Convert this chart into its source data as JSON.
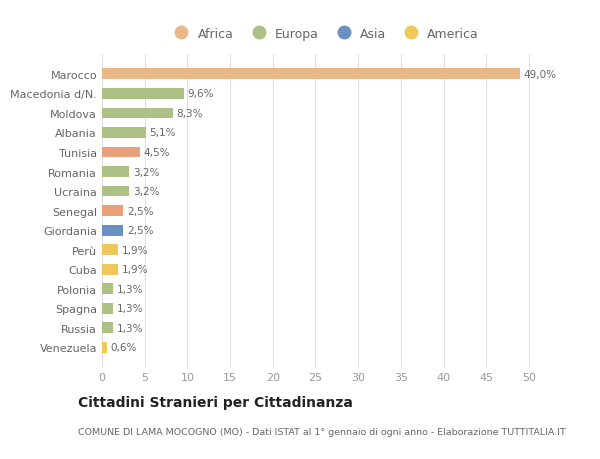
{
  "categories": [
    "Venezuela",
    "Russia",
    "Spagna",
    "Polonia",
    "Cuba",
    "Perù",
    "Giordania",
    "Senegal",
    "Ucraina",
    "Romania",
    "Tunisia",
    "Albania",
    "Moldova",
    "Macedonia d/N.",
    "Marocco"
  ],
  "values": [
    0.6,
    1.3,
    1.3,
    1.3,
    1.9,
    1.9,
    2.5,
    2.5,
    3.2,
    3.2,
    4.5,
    5.1,
    8.3,
    9.6,
    49.0
  ],
  "labels": [
    "0,6%",
    "1,3%",
    "1,3%",
    "1,3%",
    "1,9%",
    "1,9%",
    "2,5%",
    "2,5%",
    "3,2%",
    "3,2%",
    "4,5%",
    "5,1%",
    "8,3%",
    "9,6%",
    "49,0%"
  ],
  "colors": [
    "#f0c75a",
    "#adc085",
    "#adc085",
    "#adc085",
    "#f0c75a",
    "#f0c75a",
    "#6a8fc0",
    "#e8a07a",
    "#adc085",
    "#adc085",
    "#e8a07a",
    "#adc085",
    "#adc085",
    "#adc085",
    "#e8b888"
  ],
  "legend_labels": [
    "Africa",
    "Europa",
    "Asia",
    "America"
  ],
  "legend_colors": [
    "#e8b888",
    "#adc085",
    "#6a8fc0",
    "#f0c75a"
  ],
  "title": "Cittadini Stranieri per Cittadinanza",
  "subtitle": "COMUNE DI LAMA MOCOGNO (MO) - Dati ISTAT al 1° gennaio di ogni anno - Elaborazione TUTTITALIA.IT",
  "xlim": [
    0,
    52
  ],
  "xticks": [
    0,
    5,
    10,
    15,
    20,
    25,
    30,
    35,
    40,
    45,
    50
  ],
  "bg_color": "#ffffff",
  "grid_color": "#dddddd"
}
